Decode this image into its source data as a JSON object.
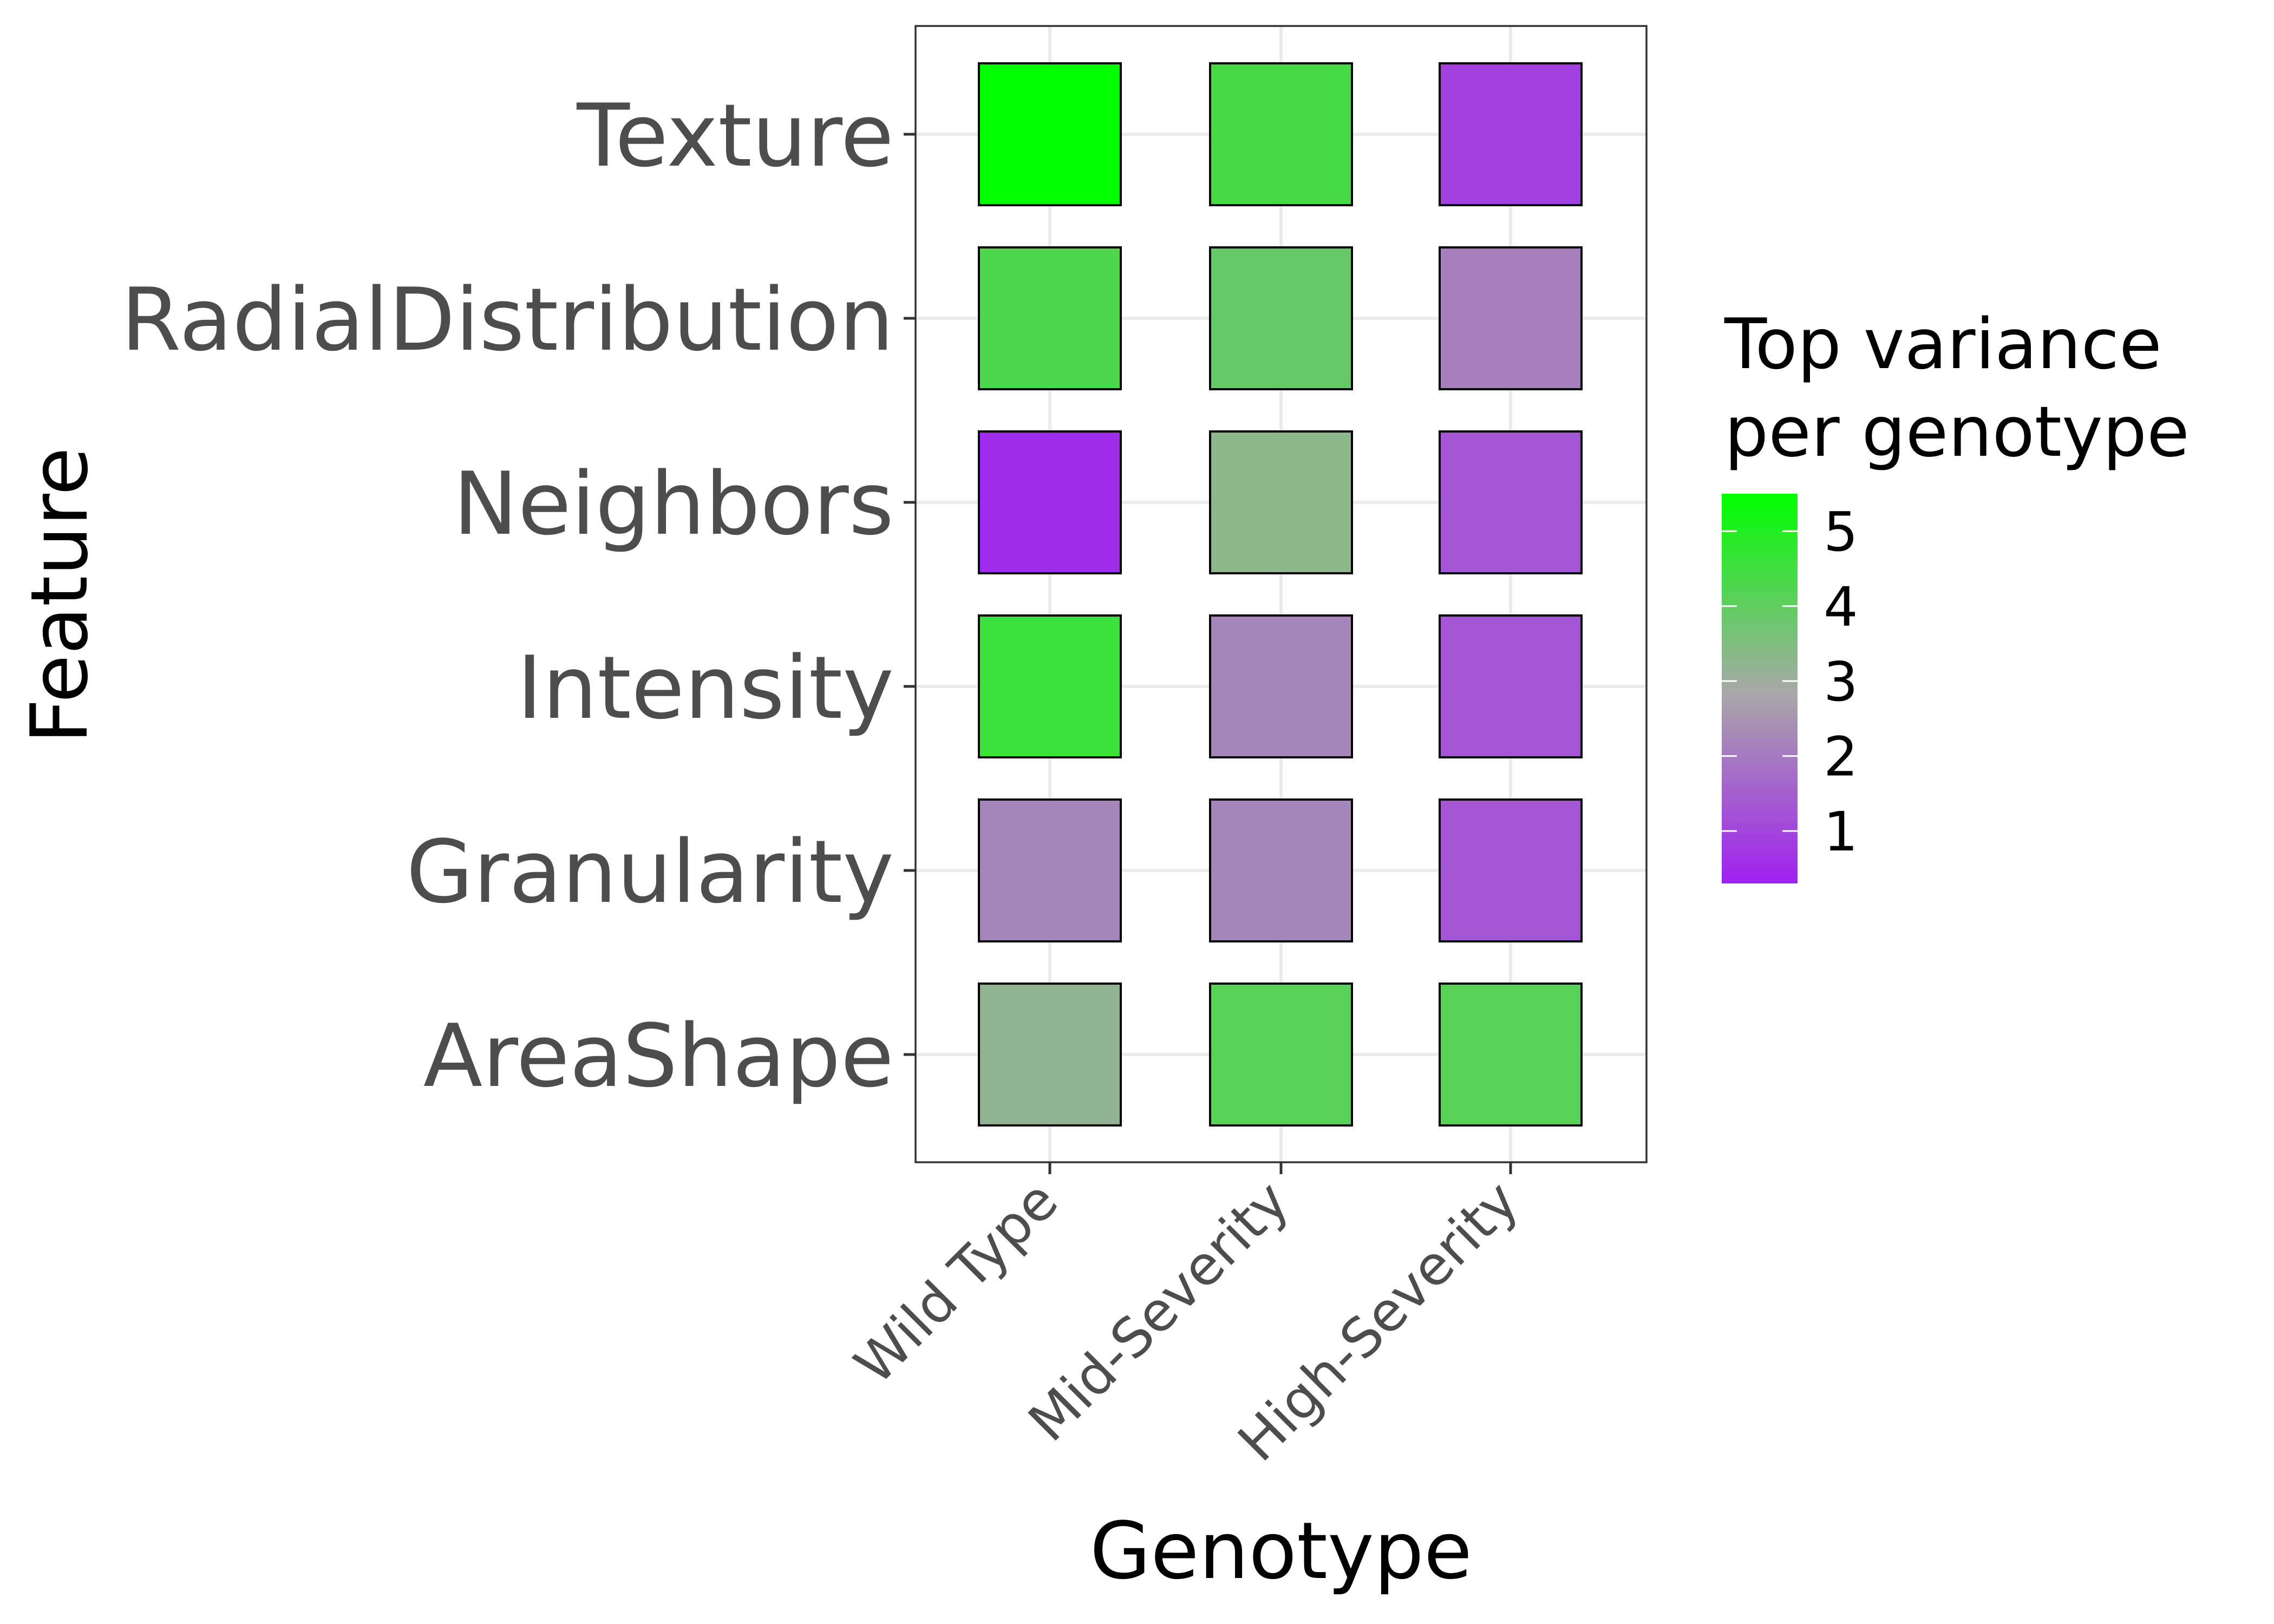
{
  "chart_data": {
    "type": "heatmap",
    "xlabel": "Genotype",
    "ylabel": "Feature",
    "x_categories": [
      "Wild Type",
      "Mid-Severity",
      "High-Severity"
    ],
    "y_categories": [
      "AreaShape",
      "Granularity",
      "Intensity",
      "Neighbors",
      "RadialDistribution",
      "Texture"
    ],
    "values": [
      [
        3.2,
        4.1,
        4.1
      ],
      [
        2.2,
        2.2,
        1.3
      ],
      [
        4.6,
        2.2,
        1.3
      ],
      [
        0.5,
        3.3,
        1.3
      ],
      [
        4.3,
        3.9,
        2.1
      ],
      [
        5.5,
        4.4,
        0.9
      ]
    ],
    "legend": {
      "title": "Top variance per genotype",
      "title_lines": [
        "Top variance",
        "per genotype"
      ],
      "ticks": [
        1,
        2,
        3,
        4,
        5
      ],
      "tick_labels": [
        "1",
        "2",
        "3",
        "4",
        "5"
      ],
      "range": [
        0.3,
        5.5
      ],
      "placement": "right"
    },
    "colorscale": {
      "low": "#a020f0",
      "mid": "#a8a8a8",
      "high": "#00ff00",
      "midpoint": 2.85
    },
    "grid": true,
    "tile_border_color": "#000000"
  }
}
